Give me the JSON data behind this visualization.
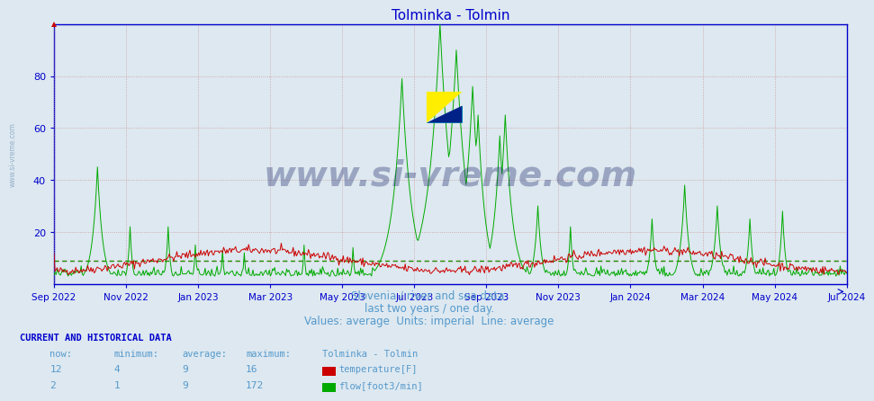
{
  "title": "Tolminka - Tolmin",
  "bg_color": "#dde8f0",
  "plot_bg_color": "#dde8f0",
  "line1_color": "#cc0000",
  "line2_color": "#00aa00",
  "avg_line1_color": "#cc0000",
  "avg_line2_color": "#00aa00",
  "axis_color": "#0000cc",
  "grid_color": "#cc8888",
  "text_color": "#5599cc",
  "watermark_text": "www.si-vreme.com",
  "watermark_color": "#1a2a6c",
  "sidebar_text_color": "#7799bb",
  "ylim": [
    0,
    100
  ],
  "yticks": [
    20,
    40,
    60,
    80
  ],
  "xlabel_months": [
    "Sep 2022",
    "Nov 2022",
    "Jan 2023",
    "Mar 2023",
    "May 2023",
    "Jul 2023",
    "Sep 2023",
    "Nov 2023",
    "Jan 2024",
    "Mar 2024",
    "May 2024",
    "Jul 2024"
  ],
  "subtitle1": "Slovenia / river and sea data.",
  "subtitle2": "last two years / one day.",
  "subtitle3": "Values: average  Units: imperial  Line: average",
  "table_header": "CURRENT AND HISTORICAL DATA",
  "col_headers": [
    "now:",
    "minimum:",
    "average:",
    "maximum:",
    "Tolminka - Tolmin"
  ],
  "row1": [
    "12",
    "4",
    "9",
    "16"
  ],
  "row1_label": "temperature[F]",
  "row1_color": "#cc0000",
  "row2": [
    "2",
    "1",
    "9",
    "172"
  ],
  "row2_label": "flow[foot3/min]",
  "row2_color": "#00aa00",
  "avg_temp": 9,
  "avg_flow": 9,
  "n_points": 730
}
